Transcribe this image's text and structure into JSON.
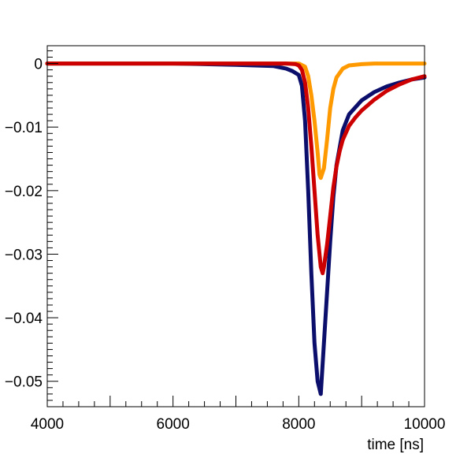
{
  "chart_data": {
    "type": "line",
    "title": "",
    "xlabel": "time [ns]",
    "ylabel": "",
    "xlim": [
      4000,
      10000
    ],
    "ylim": [
      -0.054,
      0.0028
    ],
    "grid": false,
    "legend": "none",
    "x_ticks": [
      4000,
      6000,
      8000,
      10000
    ],
    "x_tick_labels": [
      "4000",
      "6000",
      "8000",
      "10000"
    ],
    "y_ticks": [
      0,
      -0.01,
      -0.02,
      -0.03,
      -0.04,
      -0.05
    ],
    "y_tick_labels": [
      "0",
      "−0.01",
      "−0.02",
      "−0.03",
      "−0.04",
      "−0.05"
    ],
    "series": [
      {
        "color": "#0b0f6b",
        "x": [
          4000,
          5000,
          6000,
          7000,
          7600,
          7800,
          7900,
          8000,
          8050,
          8100,
          8150,
          8200,
          8250,
          8300,
          8350,
          8400,
          8450,
          8500,
          8550,
          8600,
          8700,
          8800,
          9000,
          9200,
          9400,
          9600,
          9800,
          10000
        ],
        "y": [
          0,
          0,
          0,
          -0.0002,
          -0.0004,
          -0.0008,
          -0.0012,
          -0.0018,
          -0.0035,
          -0.009,
          -0.02,
          -0.033,
          -0.044,
          -0.05,
          -0.052,
          -0.044,
          -0.036,
          -0.028,
          -0.021,
          -0.016,
          -0.0105,
          -0.008,
          -0.0058,
          -0.0045,
          -0.0036,
          -0.003,
          -0.0025,
          -0.0022
        ]
      },
      {
        "color": "#ff9900",
        "x": [
          4000,
          6000,
          7000,
          7800,
          8000,
          8100,
          8150,
          8200,
          8250,
          8300,
          8330,
          8350,
          8400,
          8450,
          8500,
          8550,
          8600,
          8700,
          8800,
          9000,
          9200,
          9500,
          10000
        ],
        "y": [
          0,
          0,
          0,
          0,
          0,
          -0.0005,
          -0.002,
          -0.005,
          -0.009,
          -0.014,
          -0.0175,
          -0.018,
          -0.0165,
          -0.012,
          -0.007,
          -0.004,
          -0.0022,
          -0.0008,
          -0.0003,
          -0.0001,
          0,
          0,
          0
        ]
      },
      {
        "color": "#cc0000",
        "x": [
          4000,
          6000,
          7000,
          7800,
          7950,
          8000,
          8050,
          8100,
          8150,
          8200,
          8250,
          8300,
          8350,
          8380,
          8400,
          8450,
          8500,
          8550,
          8600,
          8650,
          8700,
          8800,
          8900,
          9000,
          9200,
          9400,
          9600,
          9800,
          10000
        ],
        "y": [
          0,
          0,
          0,
          0,
          -0.0001,
          -0.0003,
          -0.001,
          -0.003,
          -0.007,
          -0.013,
          -0.02,
          -0.027,
          -0.032,
          -0.033,
          -0.032,
          -0.0285,
          -0.024,
          -0.0195,
          -0.0162,
          -0.0138,
          -0.012,
          -0.0098,
          -0.0085,
          -0.0074,
          -0.0057,
          -0.0043,
          -0.0033,
          -0.0025,
          -0.002
        ]
      }
    ]
  }
}
